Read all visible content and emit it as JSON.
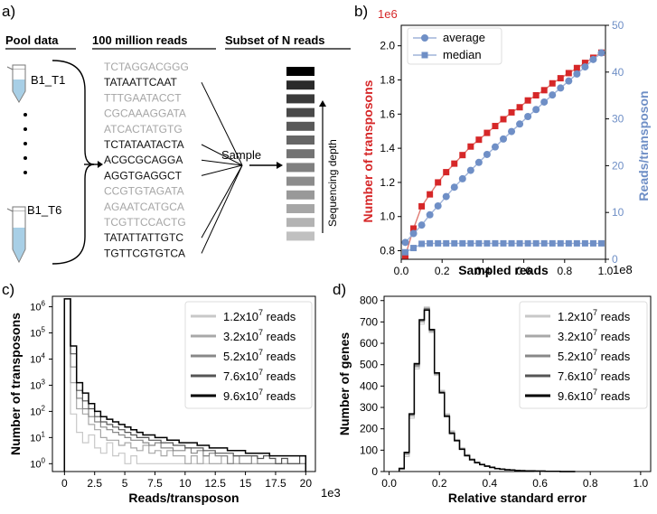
{
  "panel_labels": [
    "a)",
    "b)",
    "c)",
    "d)"
  ],
  "panel_a": {
    "headers": [
      "Pool data",
      "100 million reads",
      "Subset of N reads"
    ],
    "sample_top": "B1_T1",
    "sample_bottom": "B1_T6",
    "sequences": [
      {
        "text": "TCTAGGACGGG",
        "sampled": false
      },
      {
        "text": "TATAATTCAAT",
        "sampled": true
      },
      {
        "text": "TTTGAATACCT",
        "sampled": false
      },
      {
        "text": "CGCAAAGGATA",
        "sampled": false
      },
      {
        "text": "ATCACTATGTG",
        "sampled": false
      },
      {
        "text": "TCTATAATACTA",
        "sampled": true
      },
      {
        "text": "ACGCGCAGGA",
        "sampled": true
      },
      {
        "text": "AGGTGAGGCT",
        "sampled": true
      },
      {
        "text": "CCGTGTAGATA",
        "sampled": false
      },
      {
        "text": "AGAATCATGCA",
        "sampled": false
      },
      {
        "text": "TCGTTCCACTG",
        "sampled": false
      },
      {
        "text": "TATATTATTGTC",
        "sampled": true
      },
      {
        "text": "TGTTCGTGTCA",
        "sampled": true
      }
    ],
    "sample_label": "Sample",
    "depth_label": "Sequencing depth",
    "depth_bar_colors": [
      "#000000",
      "#2a2a2a",
      "#3a3a3a",
      "#4a4a4a",
      "#595959",
      "#666666",
      "#737373",
      "#808080",
      "#8c8c8c",
      "#999999",
      "#a6a6a6",
      "#b3b3b3",
      "#c0c0c0"
    ]
  },
  "chart_data": [
    {
      "panel": "b",
      "type": "line",
      "xlabel": "Sampled reads",
      "x_exponent": "1e8",
      "ylabel_left": "Number of transposons",
      "y_left_exponent": "1e6",
      "ylabel_right": "Reads/transposon",
      "xlim": [
        0,
        1.0
      ],
      "ylim_left": [
        0.75,
        2.12
      ],
      "ylim_right": [
        0,
        50
      ],
      "x_ticks": [
        "0.0",
        "0.2",
        "0.4",
        "0.6",
        "0.8",
        "1.0"
      ],
      "y_left_ticks": [
        "0.8",
        "1.0",
        "1.2",
        "1.4",
        "1.6",
        "1.8",
        "2.0"
      ],
      "y_right_ticks": [
        "0",
        "10",
        "20",
        "30",
        "40",
        "50"
      ],
      "x": [
        0.02,
        0.06,
        0.1,
        0.14,
        0.18,
        0.22,
        0.26,
        0.3,
        0.34,
        0.38,
        0.42,
        0.46,
        0.5,
        0.54,
        0.58,
        0.62,
        0.66,
        0.7,
        0.74,
        0.78,
        0.82,
        0.86,
        0.9,
        0.94,
        0.98
      ],
      "series": [
        {
          "name": "Number of transposons",
          "axis": "left",
          "color": "#d62728",
          "marker": "square",
          "values": [
            0.77,
            0.93,
            1.06,
            1.13,
            1.2,
            1.26,
            1.31,
            1.36,
            1.41,
            1.45,
            1.49,
            1.53,
            1.57,
            1.61,
            1.64,
            1.68,
            1.71,
            1.74,
            1.78,
            1.81,
            1.84,
            1.87,
            1.9,
            1.93,
            1.96
          ]
        },
        {
          "name": "average",
          "axis": "right",
          "color": "#6f8fc6",
          "marker": "circle",
          "values": [
            3.6,
            5.5,
            7.3,
            9.5,
            11.4,
            13.4,
            15.4,
            17.2,
            19,
            20.7,
            22.4,
            24,
            25.7,
            27.3,
            28.9,
            30.5,
            32,
            33.6,
            35.1,
            36.6,
            38.1,
            39.6,
            41.1,
            42.7,
            44.1
          ]
        },
        {
          "name": "median",
          "axis": "right",
          "color": "#6f8fc6",
          "marker": "square",
          "values": [
            1.5,
            2.4,
            3.3,
            3.4,
            3.4,
            3.4,
            3.4,
            3.4,
            3.4,
            3.4,
            3.4,
            3.4,
            3.4,
            3.4,
            3.4,
            3.4,
            3.4,
            3.4,
            3.4,
            3.4,
            3.4,
            3.4,
            3.4,
            3.4,
            3.4
          ]
        }
      ],
      "legend": [
        "average",
        "median"
      ],
      "legend_position": "top-left"
    },
    {
      "panel": "c",
      "type": "line",
      "subtype": "step-histogram-logy",
      "xlabel": "Reads/transposon",
      "x_exponent": "1e3",
      "ylabel": "Number of  transposons",
      "xlim": [
        -1,
        20.8
      ],
      "ylim_log10": [
        -0.3,
        6.4
      ],
      "x_ticks": [
        "0",
        "2.5",
        "5",
        "7.5",
        "10",
        "12.5",
        "15",
        "17.5",
        "20"
      ],
      "y_ticks": [
        "10^0",
        "10^1",
        "10^2",
        "10^3",
        "10^4",
        "10^5",
        "10^6"
      ],
      "bin_starts": [
        0,
        0.5,
        1,
        1.5,
        2,
        2.5,
        3,
        3.5,
        4,
        4.5,
        5,
        5.5,
        6,
        6.5,
        7,
        7.5,
        8,
        8.5,
        9,
        9.5,
        10,
        10.5,
        11,
        11.5,
        12,
        12.5,
        13,
        13.5,
        14,
        14.5,
        15,
        15.5,
        16,
        16.5,
        17,
        17.5,
        18,
        18.5,
        19,
        19.5
      ],
      "series": [
        {
          "name": "1.2x10^7 reads",
          "color": "#c8c8c8",
          "log10_counts": [
            6.3,
            1.9,
            1.2,
            0.8,
            1.1,
            0.6,
            0.4,
            0.8,
            0.3,
            0.4,
            0,
            0.3,
            0,
            0,
            0,
            0,
            0,
            0,
            0,
            0,
            0,
            0,
            0,
            0,
            0,
            0,
            0,
            0,
            0,
            0,
            0,
            0,
            0,
            0,
            0,
            0,
            0,
            0,
            0,
            0
          ]
        },
        {
          "name": "3.2x10^7 reads",
          "color": "#a8a8a8",
          "log10_counts": [
            6.3,
            3.1,
            2.1,
            1.9,
            1.5,
            1.3,
            1.0,
            0.9,
            0.9,
            0.7,
            0.8,
            0.6,
            0.5,
            0.7,
            0.4,
            0.5,
            0.3,
            0.5,
            0.3,
            0.3,
            0,
            0.3,
            0,
            0.3,
            0,
            0,
            0.3,
            0,
            0,
            0,
            0,
            0,
            0,
            0,
            0,
            0,
            0,
            0,
            0,
            0
          ]
        },
        {
          "name": "5.2x10^7 reads",
          "color": "#888888",
          "log10_counts": [
            6.3,
            3.7,
            2.5,
            2.1,
            1.8,
            1.6,
            1.4,
            1.3,
            1.2,
            1.1,
            1.0,
            0.9,
            0.9,
            0.8,
            0.7,
            0.8,
            0.6,
            0.6,
            0.5,
            0.5,
            0.6,
            0.4,
            0.5,
            0.3,
            0.4,
            0.3,
            0.3,
            0,
            0.3,
            0,
            0,
            0.3,
            0,
            0,
            0,
            0,
            0,
            0,
            0,
            0
          ]
        },
        {
          "name": "7.6x10^7 reads",
          "color": "#555555",
          "log10_counts": [
            6.3,
            4.2,
            2.8,
            2.4,
            2.1,
            1.8,
            1.6,
            1.5,
            1.4,
            1.3,
            1.2,
            1.1,
            1.0,
            1.0,
            0.9,
            0.9,
            0.8,
            0.8,
            0.7,
            0.7,
            0.6,
            0.6,
            0.6,
            0.5,
            0.5,
            0.4,
            0.4,
            0.4,
            0.3,
            0.3,
            0.3,
            0.3,
            0.2,
            0.3,
            0.2,
            0,
            0.2,
            0,
            0,
            0.3
          ]
        },
        {
          "name": "9.6x10^7 reads",
          "color": "#000000",
          "log10_counts": [
            6.3,
            4.5,
            3.1,
            2.7,
            2.3,
            2.0,
            1.8,
            1.7,
            1.6,
            1.5,
            1.4,
            1.3,
            1.2,
            1.1,
            1.1,
            1.0,
            1.0,
            0.9,
            0.9,
            0.8,
            0.8,
            0.8,
            0.7,
            0.7,
            0.6,
            0.6,
            0.6,
            0.5,
            0.5,
            0.5,
            0.4,
            0.4,
            0.4,
            0.4,
            0.3,
            0.3,
            0.3,
            0.3,
            0.3,
            0.3
          ]
        }
      ],
      "legend": [
        {
          "base": "1.2x10",
          "exp": "7",
          "suffix": " reads",
          "color": "#c8c8c8"
        },
        {
          "base": "3.2x10",
          "exp": "7",
          "suffix": " reads",
          "color": "#a8a8a8"
        },
        {
          "base": "5.2x10",
          "exp": "7",
          "suffix": " reads",
          "color": "#888888"
        },
        {
          "base": "7.6x10",
          "exp": "7",
          "suffix": " reads",
          "color": "#555555"
        },
        {
          "base": "9.6x10",
          "exp": "7",
          "suffix": " reads",
          "color": "#000000"
        }
      ],
      "legend_position": "top-right"
    },
    {
      "panel": "d",
      "type": "line",
      "subtype": "step-histogram",
      "xlabel": "Relative standard error",
      "ylabel": "Number of genes",
      "xlim": [
        -0.02,
        1.04
      ],
      "ylim": [
        0,
        820
      ],
      "x_ticks": [
        "0.0",
        "0.2",
        "0.4",
        "0.6",
        "0.8",
        "1.0"
      ],
      "y_ticks": [
        "0",
        "100",
        "200",
        "300",
        "400",
        "500",
        "600",
        "700",
        "800"
      ],
      "bin_starts": [
        0.04,
        0.06,
        0.08,
        0.1,
        0.12,
        0.14,
        0.16,
        0.18,
        0.2,
        0.22,
        0.24,
        0.26,
        0.28,
        0.3,
        0.32,
        0.34,
        0.36,
        0.38,
        0.4,
        0.42,
        0.44,
        0.46,
        0.48,
        0.5,
        0.52,
        0.54,
        0.56,
        0.58,
        0.6,
        0.62,
        0.64,
        0.66,
        0.68,
        0.7,
        0.72
      ],
      "series": [
        {
          "name": "1.2x10^7 reads",
          "color": "#c8c8c8",
          "values": [
            10,
            70,
            250,
            480,
            690,
            770,
            650,
            450,
            380,
            270,
            190,
            150,
            110,
            80,
            60,
            45,
            35,
            28,
            22,
            15,
            12,
            10,
            8,
            6,
            5,
            4,
            3,
            2,
            2,
            1,
            1,
            1,
            0,
            0,
            0
          ]
        },
        {
          "name": "3.2x10^7 reads",
          "color": "#a8a8a8",
          "values": [
            12,
            80,
            260,
            490,
            700,
            765,
            655,
            455,
            375,
            265,
            185,
            148,
            108,
            78,
            58,
            44,
            34,
            27,
            21,
            15,
            12,
            9,
            8,
            6,
            5,
            4,
            3,
            2,
            2,
            1,
            1,
            1,
            0,
            0,
            0
          ]
        },
        {
          "name": "5.2x10^7 reads",
          "color": "#888888",
          "values": [
            12,
            85,
            265,
            495,
            705,
            762,
            660,
            458,
            372,
            262,
            182,
            146,
            106,
            76,
            57,
            43,
            33,
            26,
            20,
            14,
            11,
            9,
            7,
            6,
            5,
            4,
            3,
            2,
            2,
            1,
            1,
            1,
            0,
            0,
            0
          ]
        },
        {
          "name": "7.6x10^7 reads",
          "color": "#555555",
          "values": [
            13,
            88,
            268,
            500,
            708,
            760,
            662,
            460,
            370,
            260,
            180,
            145,
            105,
            75,
            56,
            42,
            33,
            26,
            20,
            14,
            11,
            9,
            7,
            5,
            4,
            3,
            3,
            2,
            2,
            1,
            1,
            1,
            0,
            0,
            0
          ]
        },
        {
          "name": "9.6x10^7 reads",
          "color": "#000000",
          "values": [
            15,
            90,
            270,
            505,
            710,
            755,
            665,
            462,
            368,
            258,
            178,
            144,
            104,
            74,
            55,
            41,
            32,
            25,
            19,
            14,
            11,
            8,
            7,
            5,
            4,
            3,
            3,
            2,
            2,
            1,
            1,
            1,
            0,
            0,
            0
          ]
        }
      ],
      "legend": [
        {
          "base": "1.2x10",
          "exp": "7",
          "suffix": " reads",
          "color": "#c8c8c8"
        },
        {
          "base": "3.2x10",
          "exp": "7",
          "suffix": " reads",
          "color": "#a8a8a8"
        },
        {
          "base": "5.2x10",
          "exp": "7",
          "suffix": " reads",
          "color": "#888888"
        },
        {
          "base": "7.6x10",
          "exp": "7",
          "suffix": " reads",
          "color": "#555555"
        },
        {
          "base": "9.6x10",
          "exp": "7",
          "suffix": " reads",
          "color": "#000000"
        }
      ],
      "legend_position": "top-right"
    }
  ]
}
